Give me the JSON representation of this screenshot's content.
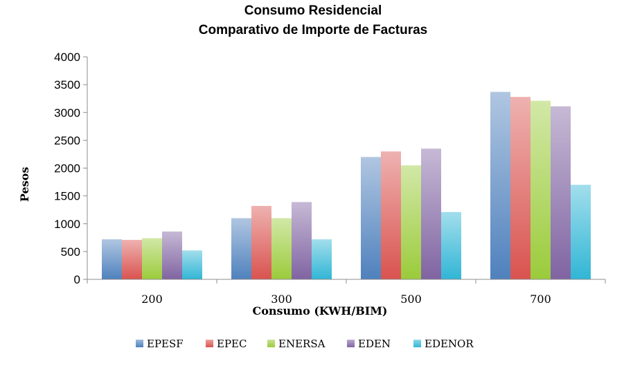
{
  "chart_data": {
    "type": "bar",
    "title": "Consumo Residencial",
    "subtitle": "Comparativo de Importe de Facturas",
    "xlabel": "Consumo (KWH/BIM)",
    "ylabel": "Pesos",
    "categories": [
      "200",
      "300",
      "500",
      "700"
    ],
    "ylim": [
      0,
      4000
    ],
    "yticks": [
      0,
      500,
      1000,
      1500,
      2000,
      2500,
      3000,
      3500,
      4000
    ],
    "grid": false,
    "legend_position": "bottom",
    "series": [
      {
        "name": "EPESF",
        "color": "#4f81bd",
        "values": [
          720,
          1100,
          2200,
          3370
        ]
      },
      {
        "name": "EPEC",
        "color": "#d9534f",
        "values": [
          710,
          1320,
          2300,
          3280
        ]
      },
      {
        "name": "ENERSA",
        "color": "#9bcb3b",
        "values": [
          740,
          1100,
          2050,
          3210
        ]
      },
      {
        "name": "EDEN",
        "color": "#8064a2",
        "values": [
          860,
          1390,
          2350,
          3110
        ]
      },
      {
        "name": "EDENOR",
        "color": "#31b6d5",
        "values": [
          520,
          720,
          1210,
          1700
        ]
      }
    ]
  }
}
